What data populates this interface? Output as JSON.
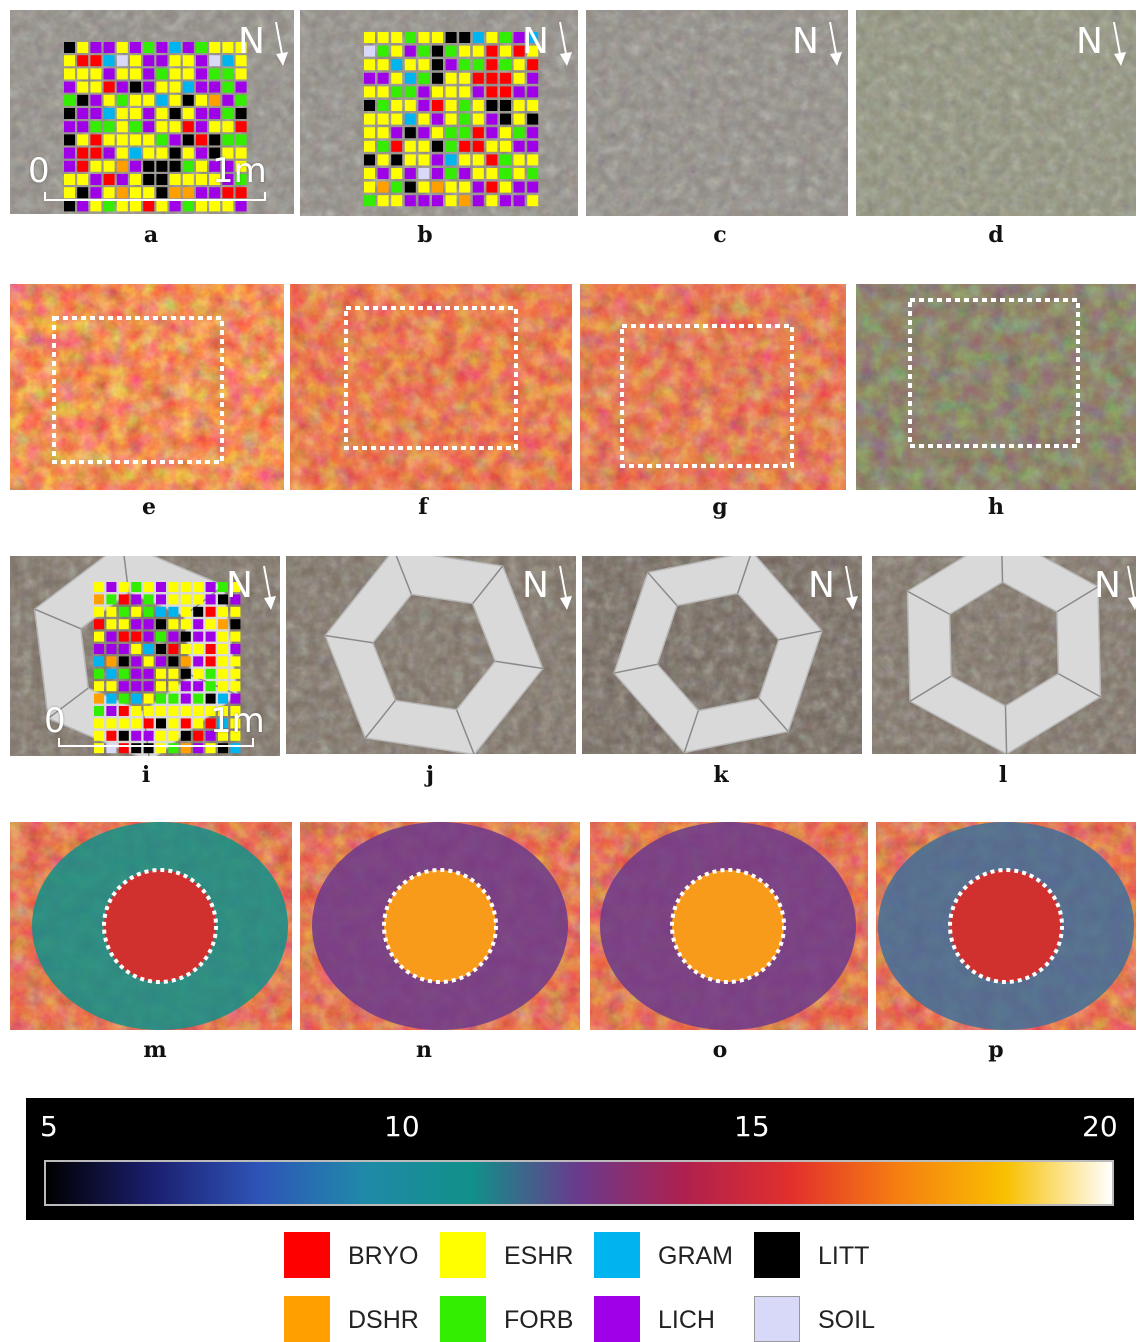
{
  "panels": [
    {
      "id": "a",
      "label": "a",
      "kind": "photo",
      "north": "N",
      "scale": [
        "0",
        "1m"
      ],
      "grid": true,
      "gridSeed": 1
    },
    {
      "id": "b",
      "label": "b",
      "kind": "photo",
      "north": "N",
      "grid": true,
      "gridSeed": 2
    },
    {
      "id": "c",
      "label": "c",
      "kind": "photo",
      "north": "N"
    },
    {
      "id": "d",
      "label": "d",
      "kind": "photo",
      "north": "N"
    },
    {
      "id": "e",
      "label": "e",
      "kind": "thermal"
    },
    {
      "id": "f",
      "label": "f",
      "kind": "thermal"
    },
    {
      "id": "g",
      "label": "g",
      "kind": "thermal"
    },
    {
      "id": "h",
      "label": "h",
      "kind": "thermal"
    },
    {
      "id": "i",
      "label": "i",
      "kind": "otc",
      "north": "N",
      "scale": [
        "0",
        "1m"
      ],
      "grid": true,
      "gridSeed": 3
    },
    {
      "id": "j",
      "label": "j",
      "kind": "otc",
      "north": "N"
    },
    {
      "id": "k",
      "label": "k",
      "kind": "otc",
      "north": "N"
    },
    {
      "id": "l",
      "label": "l",
      "kind": "otc",
      "north": "N"
    },
    {
      "id": "m",
      "label": "m",
      "kind": "thermal-otc"
    },
    {
      "id": "n",
      "label": "n",
      "kind": "thermal-otc"
    },
    {
      "id": "o",
      "label": "o",
      "kind": "thermal-otc"
    },
    {
      "id": "p",
      "label": "p",
      "kind": "thermal-otc"
    }
  ],
  "colorbar": {
    "ticks": [
      "5",
      "10",
      "15",
      "20"
    ],
    "min": 5,
    "max": 20,
    "stops": [
      "#000000",
      "#1b1f6e",
      "#2e54b8",
      "#1f8aa8",
      "#11908a",
      "#6a3a8c",
      "#b0204e",
      "#e2302c",
      "#f67f10",
      "#f8c000",
      "#ffffff"
    ]
  },
  "legend": [
    {
      "code": "BRYO",
      "color": "#ff0000"
    },
    {
      "code": "ESHR",
      "color": "#ffff00"
    },
    {
      "code": "GRAM",
      "color": "#00b4f0"
    },
    {
      "code": "LITT",
      "color": "#000000"
    },
    {
      "code": "DSHR",
      "color": "#ffa000"
    },
    {
      "code": "FORB",
      "color": "#33ee00"
    },
    {
      "code": "LICH",
      "color": "#a000e8"
    },
    {
      "code": "SOIL",
      "color": "#d8d8f8"
    }
  ]
}
